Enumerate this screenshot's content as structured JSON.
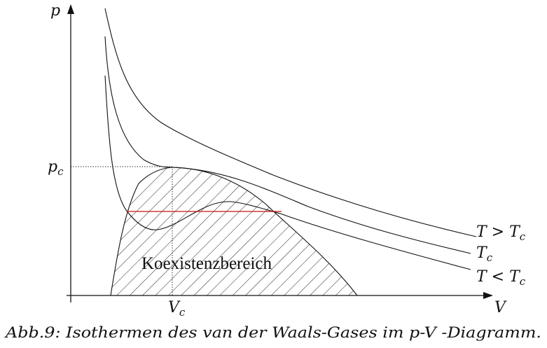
{
  "diagram": {
    "axis_y_label": "p",
    "axis_x_label": "V",
    "pc_main": "p",
    "pc_sub": "c",
    "vc_main": "V",
    "vc_sub": "c",
    "region_label": "Koexistenzbereich",
    "isotherms": [
      {
        "id": "t-above",
        "label_main": "T > T",
        "label_sub": "c"
      },
      {
        "id": "t-critical",
        "label_main": "T",
        "label_sub": "c"
      },
      {
        "id": "t-below",
        "label_main": "T < T",
        "label_sub": "c"
      }
    ],
    "caption": "Abb.9: Isothermen des van der Waals-Gases im p-V -Diagramm.",
    "colors": {
      "curve": "#111111",
      "tie_line": "#cc1111",
      "hatch": "#222222"
    }
  }
}
